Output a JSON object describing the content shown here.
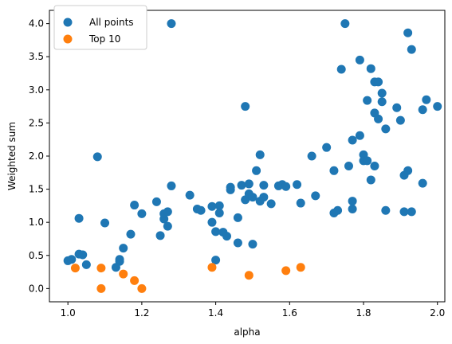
{
  "chart_data": {
    "type": "scatter",
    "xlabel": "alpha",
    "ylabel": "Weighted sum",
    "xlim": [
      0.95,
      2.02
    ],
    "ylim": [
      -0.2,
      4.2
    ],
    "xticks": [
      "1.0",
      "1.2",
      "1.4",
      "1.6",
      "1.8",
      "2.0"
    ],
    "yticks": [
      "0.0",
      "0.5",
      "1.0",
      "1.5",
      "2.0",
      "2.5",
      "3.0",
      "3.5",
      "4.0"
    ],
    "legend_position": "top-left",
    "grid": false,
    "series": [
      {
        "name": "All points",
        "color": "#1f77b4",
        "points": [
          [
            1.0,
            0.42
          ],
          [
            1.01,
            0.44
          ],
          [
            1.03,
            1.06
          ],
          [
            1.03,
            0.52
          ],
          [
            1.04,
            0.51
          ],
          [
            1.05,
            0.36
          ],
          [
            1.08,
            1.99
          ],
          [
            1.1,
            0.99
          ],
          [
            1.13,
            0.32
          ],
          [
            1.14,
            0.41
          ],
          [
            1.14,
            0.44
          ],
          [
            1.15,
            0.61
          ],
          [
            1.17,
            0.82
          ],
          [
            1.18,
            1.26
          ],
          [
            1.2,
            1.13
          ],
          [
            1.24,
            1.31
          ],
          [
            1.25,
            0.8
          ],
          [
            1.26,
            1.05
          ],
          [
            1.26,
            1.13
          ],
          [
            1.27,
            0.94
          ],
          [
            1.27,
            1.16
          ],
          [
            1.28,
            4.0
          ],
          [
            1.28,
            1.55
          ],
          [
            1.33,
            1.41
          ],
          [
            1.35,
            1.2
          ],
          [
            1.36,
            1.18
          ],
          [
            1.39,
            1.24
          ],
          [
            1.39,
            1.0
          ],
          [
            1.4,
            0.86
          ],
          [
            1.4,
            0.43
          ],
          [
            1.41,
            1.14
          ],
          [
            1.41,
            1.25
          ],
          [
            1.42,
            0.85
          ],
          [
            1.43,
            0.79
          ],
          [
            1.44,
            1.53
          ],
          [
            1.44,
            1.49
          ],
          [
            1.46,
            0.69
          ],
          [
            1.46,
            1.07
          ],
          [
            1.47,
            1.56
          ],
          [
            1.48,
            2.75
          ],
          [
            1.48,
            1.34
          ],
          [
            1.49,
            1.43
          ],
          [
            1.49,
            1.58
          ],
          [
            1.5,
            1.38
          ],
          [
            1.5,
            0.67
          ],
          [
            1.51,
            1.78
          ],
          [
            1.52,
            1.32
          ],
          [
            1.52,
            2.02
          ],
          [
            1.53,
            1.56
          ],
          [
            1.53,
            1.38
          ],
          [
            1.55,
            1.28
          ],
          [
            1.57,
            1.55
          ],
          [
            1.58,
            1.57
          ],
          [
            1.59,
            1.54
          ],
          [
            1.62,
            1.57
          ],
          [
            1.63,
            1.29
          ],
          [
            1.66,
            2.0
          ],
          [
            1.67,
            1.4
          ],
          [
            1.7,
            2.13
          ],
          [
            1.72,
            1.78
          ],
          [
            1.72,
            1.14
          ],
          [
            1.73,
            1.18
          ],
          [
            1.74,
            3.31
          ],
          [
            1.75,
            4.0
          ],
          [
            1.76,
            1.85
          ],
          [
            1.77,
            2.24
          ],
          [
            1.77,
            1.32
          ],
          [
            1.77,
            1.2
          ],
          [
            1.79,
            3.45
          ],
          [
            1.79,
            2.31
          ],
          [
            1.8,
            2.02
          ],
          [
            1.8,
            1.93
          ],
          [
            1.81,
            2.84
          ],
          [
            1.81,
            1.93
          ],
          [
            1.82,
            3.32
          ],
          [
            1.82,
            1.64
          ],
          [
            1.83,
            1.85
          ],
          [
            1.83,
            3.12
          ],
          [
            1.83,
            2.65
          ],
          [
            1.84,
            3.12
          ],
          [
            1.84,
            2.56
          ],
          [
            1.85,
            2.95
          ],
          [
            1.85,
            2.82
          ],
          [
            1.86,
            2.41
          ],
          [
            1.86,
            1.18
          ],
          [
            1.89,
            2.73
          ],
          [
            1.9,
            2.54
          ],
          [
            1.91,
            1.16
          ],
          [
            1.91,
            1.71
          ],
          [
            1.92,
            1.78
          ],
          [
            1.92,
            3.86
          ],
          [
            1.93,
            3.61
          ],
          [
            1.93,
            1.16
          ],
          [
            1.96,
            1.59
          ],
          [
            1.96,
            2.7
          ],
          [
            1.97,
            2.85
          ],
          [
            2.0,
            2.75
          ]
        ]
      },
      {
        "name": "Top 10",
        "color": "#ff7f0e",
        "points": [
          [
            1.02,
            0.31
          ],
          [
            1.09,
            0.31
          ],
          [
            1.09,
            0.0
          ],
          [
            1.15,
            0.22
          ],
          [
            1.18,
            0.12
          ],
          [
            1.2,
            0.0
          ],
          [
            1.39,
            0.32
          ],
          [
            1.49,
            0.2
          ],
          [
            1.59,
            0.27
          ],
          [
            1.63,
            0.32
          ]
        ]
      }
    ]
  }
}
